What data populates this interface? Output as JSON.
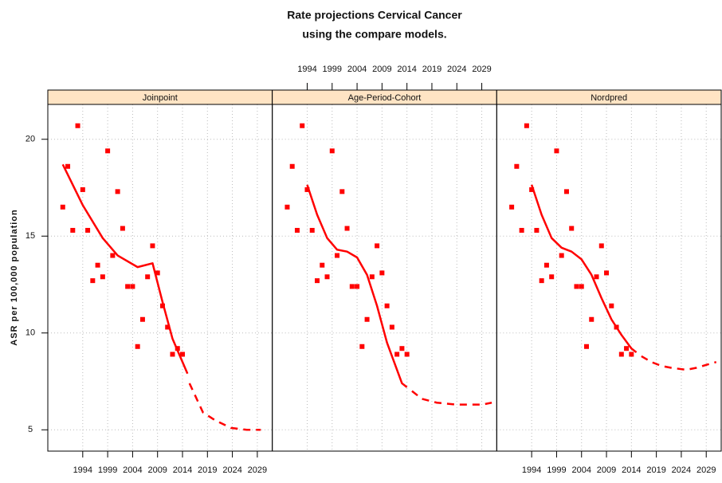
{
  "title": [
    "Rate projections Cervical Cancer",
    "using the compare models."
  ],
  "ylabel": "ASR per 100,000 population",
  "chart_data": [
    {
      "type": "scatter",
      "title": "Joinpoint",
      "xlim": [
        1987,
        2032
      ],
      "ylim": [
        3.9,
        21.8
      ],
      "xticks": [
        1994,
        1999,
        2004,
        2009,
        2014,
        2019,
        2024,
        2029
      ],
      "yticks": [
        5,
        10,
        15,
        20
      ],
      "grid": true,
      "x_axis_side": "bottom",
      "series": [
        {
          "style": "points",
          "color": "#ff0000",
          "x": [
            1990,
            1991,
            1992,
            1993,
            1994,
            1995,
            1996,
            1997,
            1998,
            1999,
            2000,
            2001,
            2002,
            2003,
            2004,
            2005,
            2006,
            2007,
            2008,
            2009,
            2010,
            2011,
            2012,
            2013,
            2014
          ],
          "values": [
            16.5,
            18.6,
            15.3,
            20.7,
            17.4,
            15.3,
            12.7,
            13.5,
            12.9,
            19.4,
            14.0,
            17.3,
            15.4,
            12.4,
            12.4,
            9.3,
            10.7,
            12.9,
            14.5,
            13.1,
            11.4,
            10.3,
            8.9,
            9.2,
            8.9
          ]
        },
        {
          "style": "solid",
          "color": "#ff0000",
          "x": [
            1990,
            1994,
            1998,
            2001,
            2005,
            2008,
            2010,
            2012,
            2015
          ],
          "values": [
            18.7,
            16.6,
            14.9,
            14.0,
            13.4,
            13.6,
            11.6,
            9.7,
            7.9
          ]
        },
        {
          "style": "dashed",
          "color": "#ff0000",
          "x": [
            2015.4,
            2018.1,
            2020.5,
            2023.7,
            2026.9,
            2029.7
          ],
          "values": [
            7.4,
            5.9,
            5.5,
            5.1,
            5.0,
            5.0
          ]
        }
      ]
    },
    {
      "type": "scatter",
      "title": "Age-Period-Cohort",
      "xlim": [
        1987,
        2032
      ],
      "ylim": [
        3.9,
        21.8
      ],
      "xticks": [
        1994,
        1999,
        2004,
        2009,
        2014,
        2019,
        2024,
        2029
      ],
      "yticks": [
        5,
        10,
        15,
        20
      ],
      "grid": true,
      "x_axis_side": "top",
      "series": [
        {
          "style": "points",
          "color": "#ff0000",
          "x": [
            1990,
            1991,
            1992,
            1993,
            1994,
            1995,
            1996,
            1997,
            1998,
            1999,
            2000,
            2001,
            2002,
            2003,
            2004,
            2005,
            2006,
            2007,
            2008,
            2009,
            2010,
            2011,
            2012,
            2013,
            2014
          ],
          "values": [
            16.5,
            18.6,
            15.3,
            20.7,
            17.4,
            15.3,
            12.7,
            13.5,
            12.9,
            19.4,
            14.0,
            17.3,
            15.4,
            12.4,
            12.4,
            9.3,
            10.7,
            12.9,
            14.5,
            13.1,
            11.4,
            10.3,
            8.9,
            9.2,
            8.9
          ]
        },
        {
          "style": "solid",
          "color": "#ff0000",
          "x": [
            1994,
            1996,
            1998,
            2000,
            2002,
            2004,
            2006,
            2008,
            2010,
            2012,
            2013,
            2014
          ],
          "values": [
            17.65,
            16.1,
            14.9,
            14.3,
            14.2,
            13.9,
            13.0,
            11.4,
            9.5,
            8.1,
            7.4,
            7.2
          ]
        },
        {
          "style": "dashed",
          "color": "#ff0000",
          "x": [
            2015,
            2017,
            2020,
            2024,
            2029,
            2031
          ],
          "values": [
            7.0,
            6.6,
            6.4,
            6.3,
            6.3,
            6.4
          ]
        }
      ]
    },
    {
      "type": "scatter",
      "title": "Nordpred",
      "xlim": [
        1987,
        2032
      ],
      "ylim": [
        3.9,
        21.8
      ],
      "xticks": [
        1994,
        1999,
        2004,
        2009,
        2014,
        2019,
        2024,
        2029
      ],
      "yticks": [
        5,
        10,
        15,
        20
      ],
      "grid": true,
      "x_axis_side": "bottom",
      "series": [
        {
          "style": "points",
          "color": "#ff0000",
          "x": [
            1990,
            1991,
            1992,
            1993,
            1994,
            1995,
            1996,
            1997,
            1998,
            1999,
            2000,
            2001,
            2002,
            2003,
            2004,
            2005,
            2006,
            2007,
            2008,
            2009,
            2010,
            2011,
            2012,
            2013,
            2014
          ],
          "values": [
            16.5,
            18.6,
            15.3,
            20.7,
            17.4,
            15.3,
            12.7,
            13.5,
            12.9,
            19.4,
            14.0,
            17.3,
            15.4,
            12.4,
            12.4,
            9.3,
            10.7,
            12.9,
            14.5,
            13.1,
            11.4,
            10.3,
            8.9,
            9.2,
            8.9
          ]
        },
        {
          "style": "solid",
          "color": "#ff0000",
          "x": [
            1994,
            1996,
            1998,
            2000,
            2002,
            2004,
            2006,
            2008,
            2010,
            2012,
            2014,
            2015
          ],
          "values": [
            17.65,
            16.1,
            14.9,
            14.4,
            14.2,
            13.8,
            13.0,
            11.8,
            10.7,
            9.9,
            9.2,
            9.0
          ]
        },
        {
          "style": "dashed",
          "color": "#ff0000",
          "x": [
            2016,
            2018,
            2020,
            2022,
            2025,
            2027,
            2029,
            2031
          ],
          "values": [
            8.8,
            8.5,
            8.3,
            8.2,
            8.1,
            8.2,
            8.35,
            8.5
          ]
        }
      ]
    }
  ]
}
